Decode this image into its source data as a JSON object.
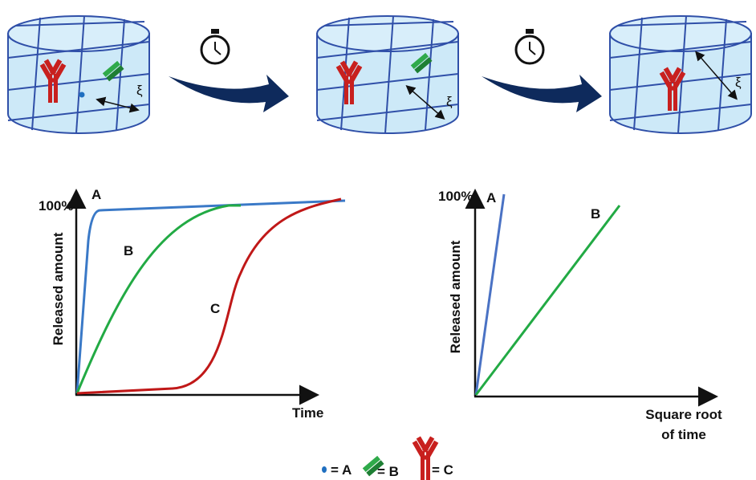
{
  "panels": [
    {
      "symbol": "ξ"
    },
    {
      "symbol": "ξ"
    },
    {
      "symbol": "ξ"
    }
  ],
  "left_plot": {
    "y_label": "Released amount",
    "y_max_label": "100%",
    "x_label": "Time",
    "curve_labels": [
      "A",
      "B",
      "C"
    ]
  },
  "right_plot": {
    "y_label": "Released amount",
    "y_max_label": "100%",
    "x_label_lines": [
      "Square root",
      "of time"
    ],
    "curve_labels": [
      "A",
      "B"
    ]
  },
  "legend": [
    {
      "label": "= A"
    },
    {
      "label": "= B"
    },
    {
      "label": "= C"
    }
  ]
}
